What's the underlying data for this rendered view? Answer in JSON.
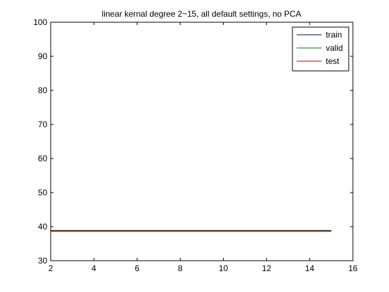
{
  "chart_data": {
    "type": "line",
    "title": "linear kernal degree 2~15, all default settings, no PCA",
    "xlabel": "",
    "ylabel": "",
    "xlim": [
      2,
      16
    ],
    "ylim": [
      30,
      100
    ],
    "xticks": [
      2,
      4,
      6,
      8,
      10,
      12,
      14,
      16
    ],
    "yticks": [
      30,
      40,
      50,
      60,
      70,
      80,
      90,
      100
    ],
    "grid": false,
    "legend_position": "top-right",
    "series": [
      {
        "name": "train",
        "color": "#00007f",
        "x": [
          2,
          15
        ],
        "y": [
          38.8,
          38.8
        ]
      },
      {
        "name": "valid",
        "color": "#007f00",
        "x": [
          2,
          15
        ],
        "y": [
          38.6,
          38.6
        ]
      },
      {
        "name": "test",
        "color": "#bf0000",
        "x": [
          2,
          15
        ],
        "y": [
          38.9,
          38.9
        ]
      }
    ]
  }
}
